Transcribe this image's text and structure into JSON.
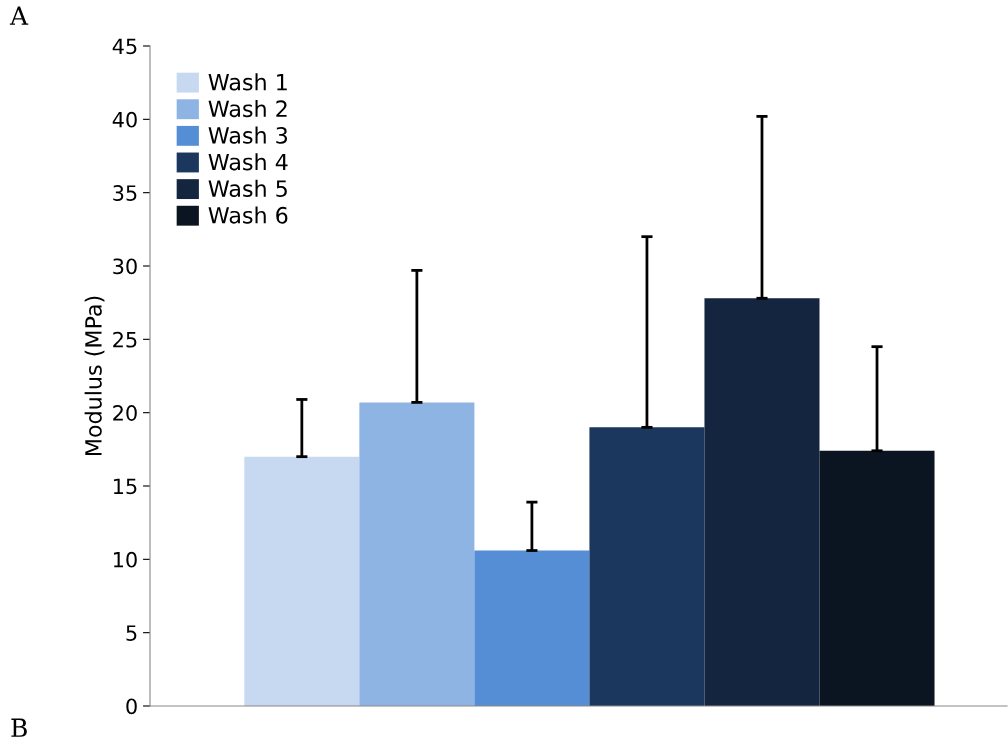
{
  "chart_data": {
    "type": "bar",
    "ylabel": "Modulus (MPa)",
    "categories": [
      null
    ],
    "series": [
      {
        "name": "Wash 1",
        "color": "#c6d9f1",
        "values": [
          17.0
        ],
        "errors": [
          [
            17.0,
            20.9
          ]
        ]
      },
      {
        "name": "Wash 2",
        "color": "#8eb4e3",
        "values": [
          20.7
        ],
        "errors": [
          [
            20.7,
            29.7
          ]
        ]
      },
      {
        "name": "Wash 3",
        "color": "#558ed5",
        "values": [
          10.6
        ],
        "errors": [
          [
            10.6,
            13.9
          ]
        ]
      },
      {
        "name": "Wash 4",
        "color": "#1b375e",
        "values": [
          19.0
        ],
        "errors": [
          [
            19.0,
            32.0
          ]
        ]
      },
      {
        "name": "Wash 5",
        "color": "#13253f",
        "values": [
          27.8
        ],
        "errors": [
          [
            27.8,
            40.2
          ]
        ]
      },
      {
        "name": "Wash 6",
        "color": "#0b1521",
        "values": [
          17.4
        ],
        "errors": [
          [
            17.4,
            24.5
          ]
        ]
      }
    ],
    "ylim": [
      0,
      45
    ],
    "yticks": [
      0,
      5,
      10,
      15,
      20,
      25,
      30,
      35,
      40,
      45
    ],
    "grid": false,
    "legend": "top left",
    "annotations": [
      "A",
      "B"
    ]
  }
}
